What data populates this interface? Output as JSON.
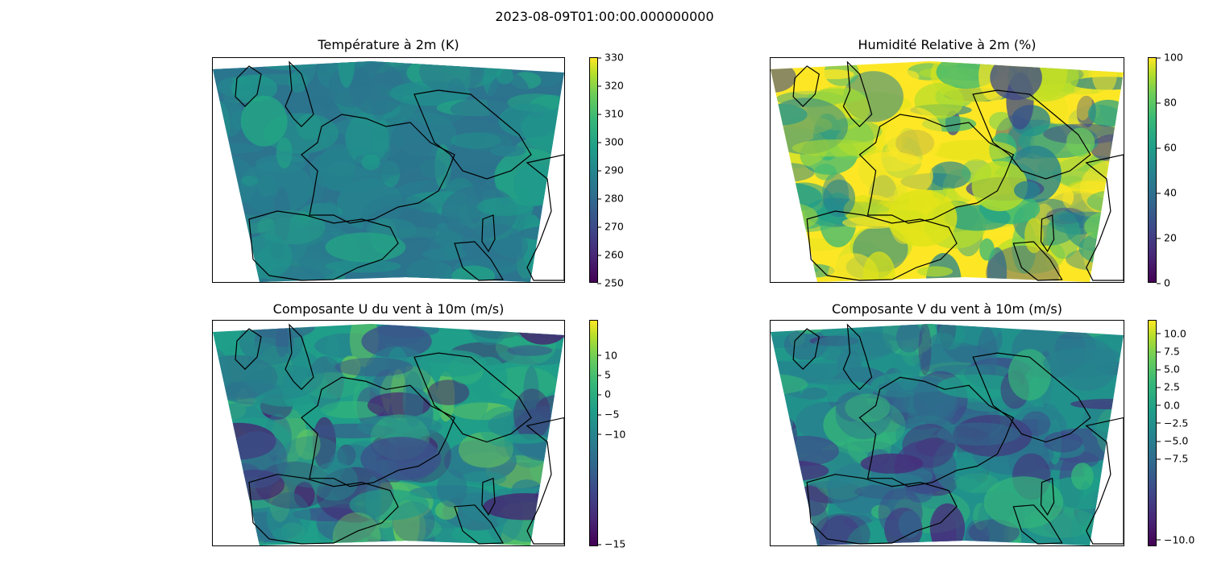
{
  "figure": {
    "title": "2023-08-09T01:00:00.000000000"
  },
  "panels": [
    {
      "title": "Température à 2m (K)",
      "colorbar": {
        "ticks": [
          "330",
          "320",
          "310",
          "300",
          "290",
          "280",
          "270",
          "260",
          "250"
        ]
      },
      "palette": [
        "#2c738e",
        "#2a788e",
        "#26828e",
        "#25858e",
        "#21918c",
        "#1f9a8a",
        "#23a884"
      ]
    },
    {
      "title": "Humidité Relative à 2m (%)",
      "colorbar": {
        "ticks": [
          "100",
          "80",
          "60",
          "40",
          "20",
          "0"
        ]
      },
      "palette": [
        "#fde725",
        "#dde318",
        "#b5de2b",
        "#6ece58",
        "#35b779",
        "#1f9e89",
        "#26828e",
        "#3e4989"
      ]
    },
    {
      "title": "Composante U du vent à 10m (m/s)",
      "colorbar": {
        "ticks": [
          "10",
          "5",
          "0",
          "−5",
          "−10",
          "−15"
        ]
      },
      "palette": [
        "#1f9e89",
        "#21918c",
        "#26828e",
        "#35b779",
        "#2c728e",
        "#6ece58",
        "#3b528b",
        "#481f70"
      ]
    },
    {
      "title": "Composante V du vent à 10m (m/s)",
      "colorbar": {
        "ticks": [
          "10.0",
          "7.5",
          "5.0",
          "2.5",
          "0.0",
          "−2.5",
          "−5.0",
          "−7.5",
          "−10.0"
        ]
      },
      "palette": [
        "#21918c",
        "#26828e",
        "#2a788e",
        "#1f9e89",
        "#31688e",
        "#3e4989",
        "#35b779",
        "#472d7b"
      ]
    }
  ],
  "colormap": "viridis",
  "coastline_color": "#000000",
  "background_color": "#ffffff"
}
